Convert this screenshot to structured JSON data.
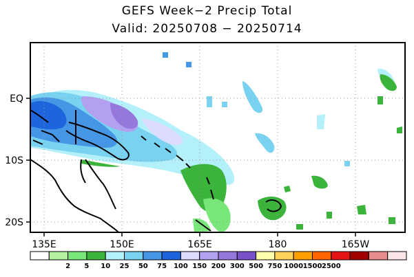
{
  "title": "GEFS Week−2 Precip Total",
  "subtitle": "Valid: 20250708 − 20250714",
  "map": {
    "lat_labels": [
      "EQ",
      "10S",
      "20S"
    ],
    "lon_labels": [
      "135E",
      "150E",
      "165E",
      "180",
      "165W"
    ],
    "gridlines": "dotted"
  },
  "colorbar": {
    "colors": [
      "#ffffff",
      "#b4f0a0",
      "#78e678",
      "#3cb43c",
      "#b4f0fa",
      "#78d2f0",
      "#4696e6",
      "#1e64dc",
      "#dcdcff",
      "#b4a0f0",
      "#9678dc",
      "#7850c8",
      "#ffffaa",
      "#ffd25a",
      "#ffa000",
      "#ff6400",
      "#e61414",
      "#a00000",
      "#e68c8c",
      "#fae6e6"
    ],
    "labels": [
      "2",
      "5",
      "10",
      "25",
      "50",
      "75",
      "100",
      "150",
      "200",
      "300",
      "500",
      "750",
      "1000",
      "1500",
      "2500"
    ]
  }
}
